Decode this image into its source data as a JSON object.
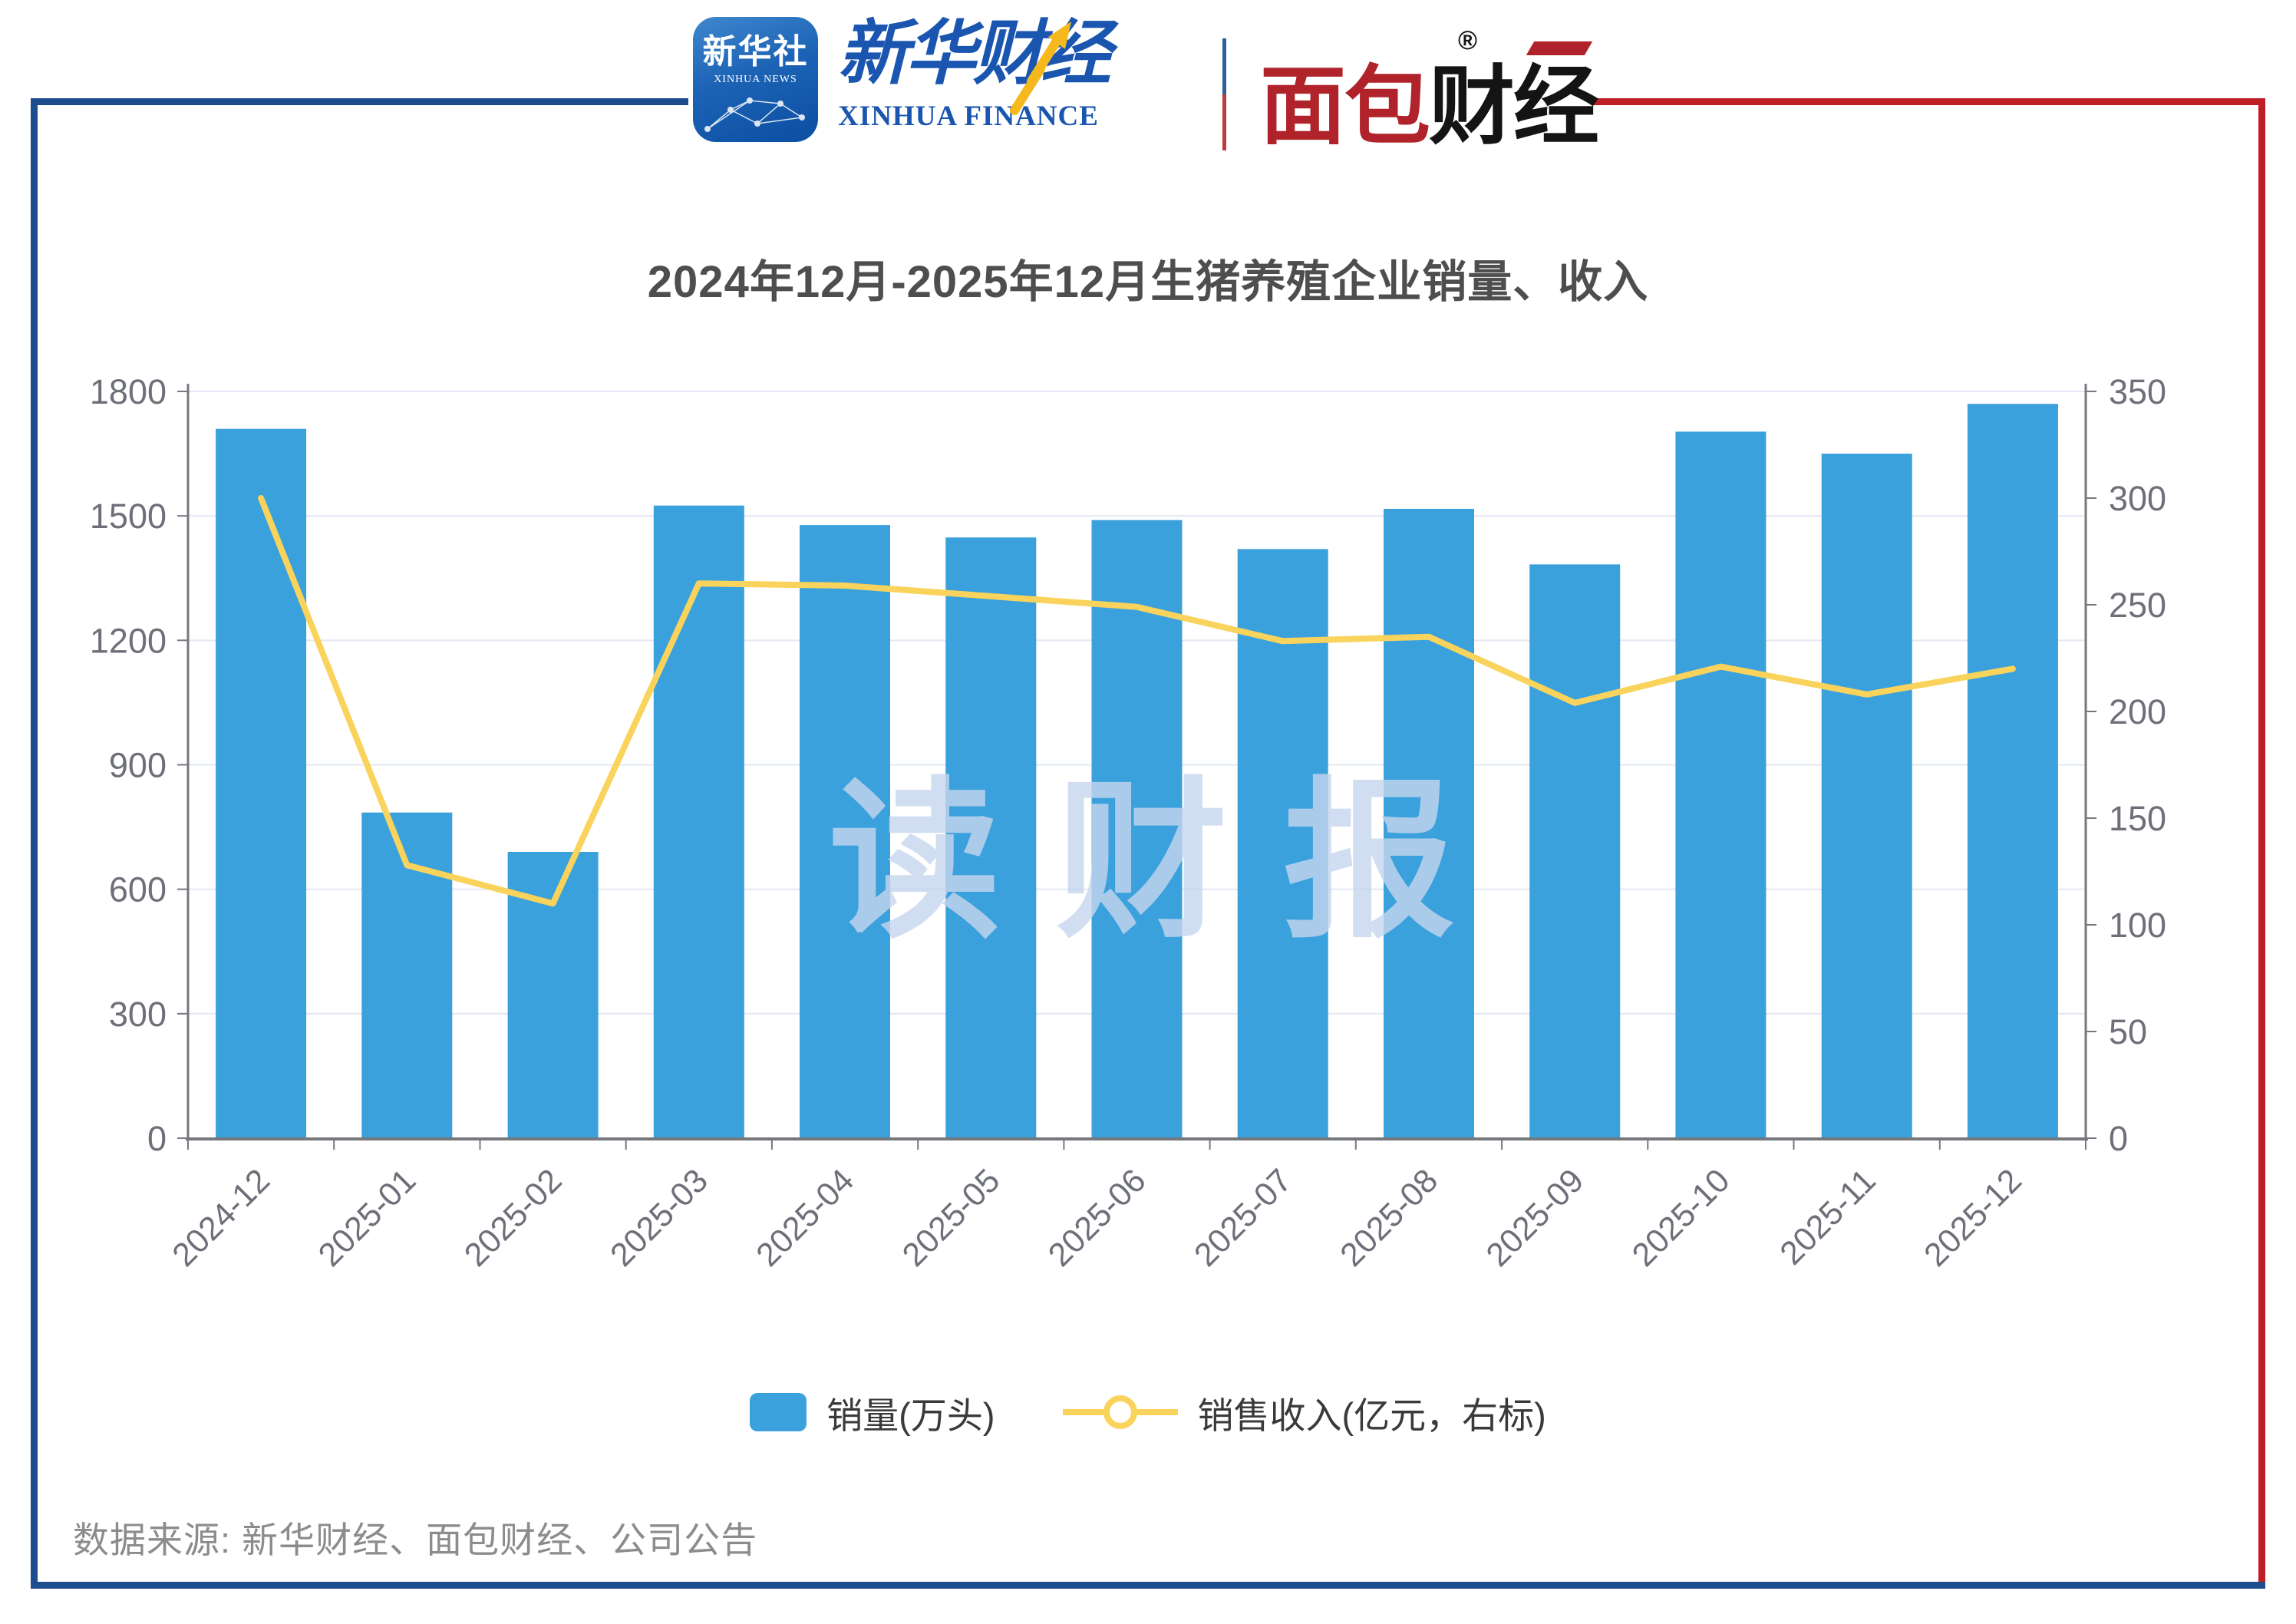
{
  "header": {
    "xinhua_app": {
      "cn": "新华社",
      "en": "XINHUA NEWS"
    },
    "xinhua_finance": {
      "cn": "新华财经",
      "en": "XINHUA FINANCE"
    },
    "bread_finance": {
      "cn_red": "面包",
      "cn_black": "财经",
      "reg_mark": "®"
    }
  },
  "chart_data": {
    "type": "bar",
    "title": "2024年12月-2025年12月生猪养殖企业销量、收入",
    "categories": [
      "2024-12",
      "2025-01",
      "2025-02",
      "2025-03",
      "2025-04",
      "2025-05",
      "2025-06",
      "2025-07",
      "2025-08",
      "2025-09",
      "2025-10",
      "2025-11",
      "2025-12"
    ],
    "series": [
      {
        "name": "销量(万头)",
        "type": "bar",
        "axis": "left",
        "values": [
          1710,
          785,
          690,
          1525,
          1478,
          1448,
          1490,
          1420,
          1517,
          1383,
          1703,
          1650,
          1770
        ]
      },
      {
        "name": "销售收入(亿元，右标)",
        "type": "line",
        "axis": "right",
        "values": [
          300,
          128,
          110,
          260,
          259,
          254,
          249,
          233,
          235,
          204,
          221,
          208,
          220
        ]
      }
    ],
    "left_axis": {
      "min": 0,
      "max": 1800,
      "step": 300
    },
    "right_axis": {
      "min": 0,
      "max": 350,
      "step": 50
    },
    "grid": true,
    "legend_position": "bottom",
    "xlabel": "",
    "ylabel": ""
  },
  "legend": {
    "bar_label": "销量(万头)",
    "line_label": "销售收入(亿元，右标)"
  },
  "watermark": "读财报",
  "source": "数据来源: 新华财经、面包财经、公司公告",
  "colors": {
    "frame_blue": "#1d4d8e",
    "frame_red": "#bf1e26",
    "bar_color": "#3aa1dc",
    "line_color": "#f9d35b",
    "grid_color": "#e2e8f3",
    "axis_color": "#75787d",
    "tick_label_color": "#6e7079",
    "title_color": "#4e4e4e",
    "source_color": "#8c8c8c",
    "watermark_color": "#c6d6ee"
  }
}
